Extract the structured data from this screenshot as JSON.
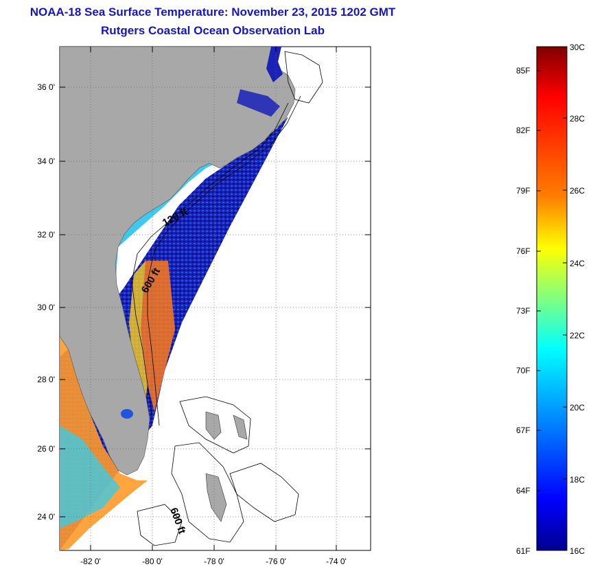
{
  "title": {
    "line1": "NOAA-18 Sea Surface Temperature:  November 23, 2015 1202 GMT",
    "line2": "Rutgers Coastal Ocean Observation Lab"
  },
  "map": {
    "lon_labels": [
      "-82 0'",
      "-80 0'",
      "-78 0'",
      "-76 0'",
      "-74 0'"
    ],
    "lat_labels": [
      "36 0'",
      "34 0'",
      "32 0'",
      "30 0'",
      "28 0'",
      "26 0'",
      "24 0'"
    ],
    "lon_range": [
      -83,
      -73
    ],
    "lat_range": [
      23,
      37
    ],
    "isobaths": [
      "120 ft",
      "600 ft",
      "600 ft"
    ],
    "colors": {
      "land": "#a8a8a8",
      "no_data": "#ffffff"
    }
  },
  "colorbar": {
    "celsius_labels": [
      "30C",
      "28C",
      "26C",
      "24C",
      "22C",
      "20C",
      "18C",
      "16C"
    ],
    "fahrenheit_labels": [
      "85F",
      "82F",
      "79F",
      "76F",
      "73F",
      "70F",
      "67F",
      "64F",
      "61F"
    ],
    "colors": [
      "#800000",
      "#ff0000",
      "#ff8000",
      "#ffff00",
      "#80ff80",
      "#00ffff",
      "#0080ff",
      "#0000ff",
      "#00008f"
    ]
  }
}
